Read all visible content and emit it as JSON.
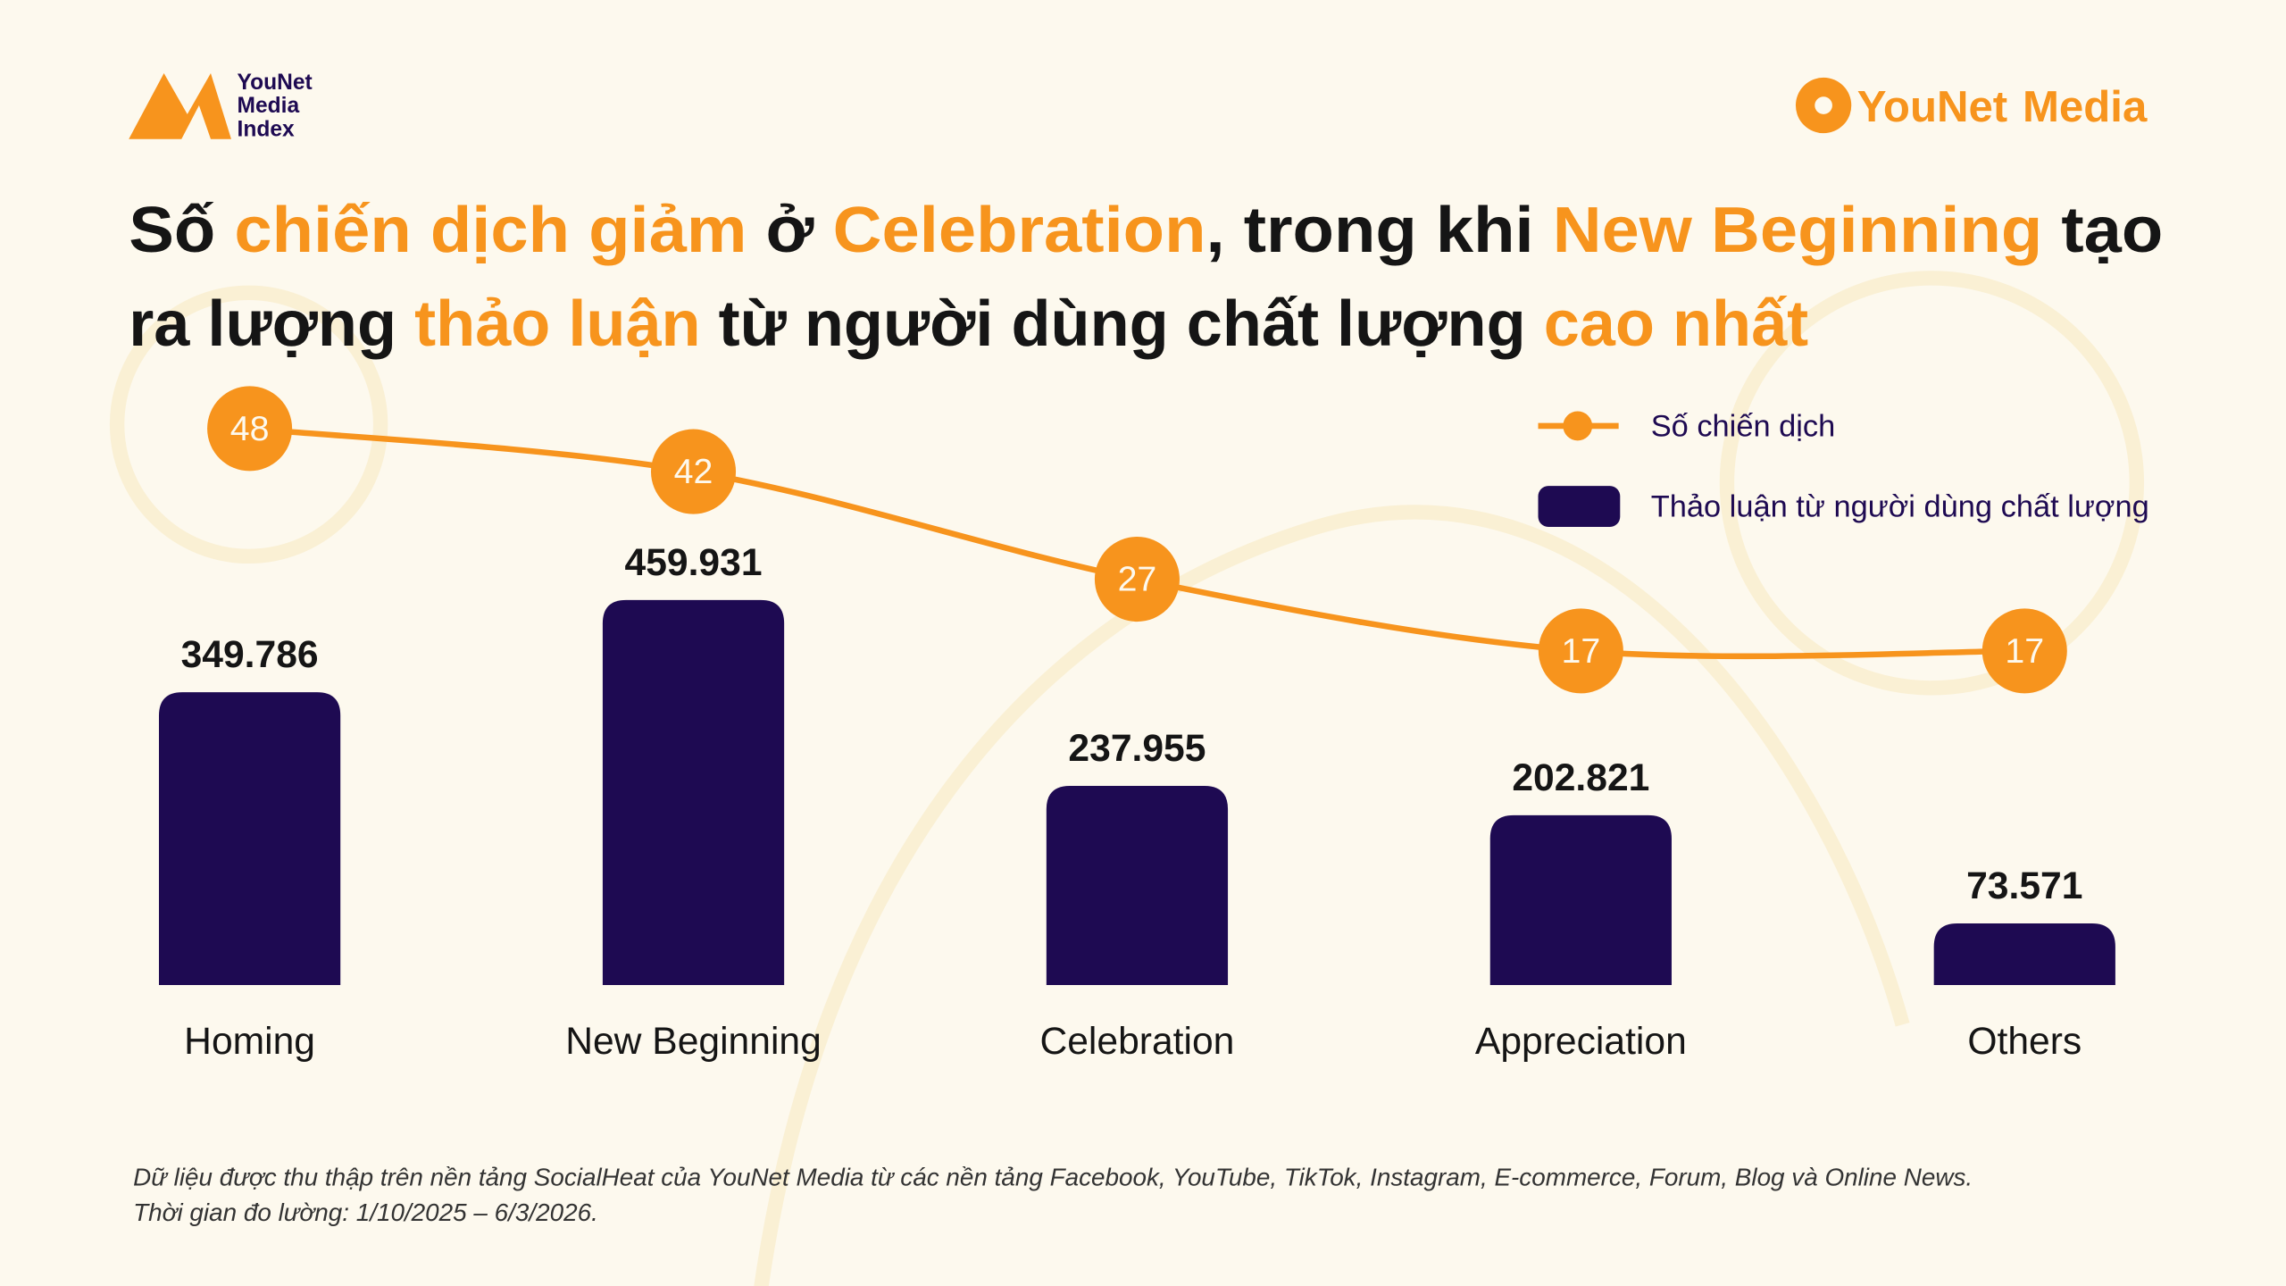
{
  "brand_left": [
    "YouNet",
    "Media",
    "Index"
  ],
  "brand_right": [
    "YouNet",
    "Media"
  ],
  "chart_data": {
    "type": "bar",
    "title_lines": [
      [
        {
          "text": "Số ",
          "color": "#151515"
        },
        {
          "text": "chiến dịch giảm",
          "color": "#f7941d"
        },
        {
          "text": " ở ",
          "color": "#151515"
        },
        {
          "text": "Celebration",
          "color": "#f7941d"
        },
        {
          "text": ", trong khi ",
          "color": "#151515"
        },
        {
          "text": "New Beginning",
          "color": "#f7941d"
        },
        {
          "text": " tạo",
          "color": "#151515"
        }
      ],
      [
        {
          "text": "ra lượng ",
          "color": "#151515"
        },
        {
          "text": "thảo luận",
          "color": "#f7941d"
        },
        {
          "text": " từ người dùng chất lượng ",
          "color": "#151515"
        },
        {
          "text": "cao nhất",
          "color": "#f7941d"
        }
      ]
    ],
    "categories": [
      "Homing",
      "New Beginning",
      "Celebration",
      "Appreciation",
      "Others"
    ],
    "series": [
      {
        "name": "Thảo luận từ người dùng chất lượng",
        "type": "bar",
        "color": "#1e0a52",
        "values": [
          349786,
          459931,
          237955,
          202821,
          73571
        ],
        "value_labels": [
          "349.786",
          "459.931",
          "237.955",
          "202.821",
          "73.571"
        ]
      },
      {
        "name": "Số chiến dịch",
        "type": "line",
        "axis": "y2",
        "color": "#f7941d",
        "values": [
          48,
          42,
          27,
          17,
          17
        ]
      }
    ],
    "ylim": [
      0,
      500000
    ],
    "y2lim": [
      0,
      60
    ],
    "footnote": [
      "Dữ liệu được thu thập trên nền tảng SocialHeat của YouNet Media từ các nền tảng Facebook, YouTube, TikTok, Instagram, E-commerce, Forum, Blog và Online News.",
      "Thời gian đo lường: 1/10/2025 – 6/3/2026."
    ]
  }
}
